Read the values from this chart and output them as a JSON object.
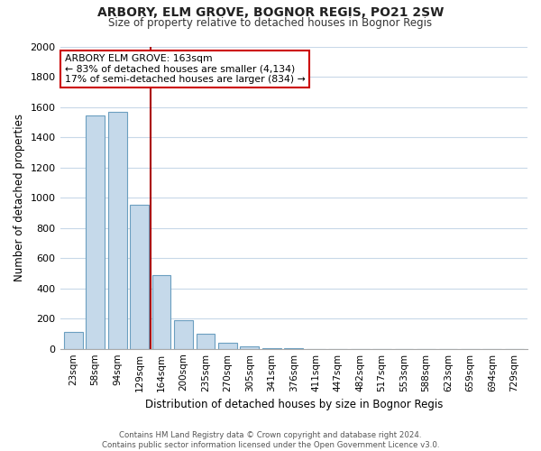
{
  "title": "ARBORY, ELM GROVE, BOGNOR REGIS, PO21 2SW",
  "subtitle": "Size of property relative to detached houses in Bognor Regis",
  "xlabel": "Distribution of detached houses by size in Bognor Regis",
  "ylabel": "Number of detached properties",
  "bar_labels": [
    "23sqm",
    "58sqm",
    "94sqm",
    "129sqm",
    "164sqm",
    "200sqm",
    "235sqm",
    "270sqm",
    "305sqm",
    "341sqm",
    "376sqm",
    "411sqm",
    "447sqm",
    "482sqm",
    "517sqm",
    "553sqm",
    "588sqm",
    "623sqm",
    "659sqm",
    "694sqm",
    "729sqm"
  ],
  "bar_values": [
    110,
    1545,
    1565,
    950,
    490,
    190,
    100,
    40,
    15,
    5,
    2,
    0,
    0,
    0,
    0,
    0,
    0,
    0,
    0,
    0,
    0
  ],
  "bar_color": "#c5d9ea",
  "bar_edge_color": "#6b9fc0",
  "vline_color": "#aa0000",
  "annotation_title": "ARBORY ELM GROVE: 163sqm",
  "annotation_line1": "← 83% of detached houses are smaller (4,134)",
  "annotation_line2": "17% of semi-detached houses are larger (834) →",
  "annotation_box_color": "#ffffff",
  "annotation_box_edge": "#cc0000",
  "ylim": [
    0,
    2000
  ],
  "yticks": [
    0,
    200,
    400,
    600,
    800,
    1000,
    1200,
    1400,
    1600,
    1800,
    2000
  ],
  "footer_line1": "Contains HM Land Registry data © Crown copyright and database right 2024.",
  "footer_line2": "Contains public sector information licensed under the Open Government Licence v3.0.",
  "background_color": "#ffffff",
  "grid_color": "#c8d8e8"
}
